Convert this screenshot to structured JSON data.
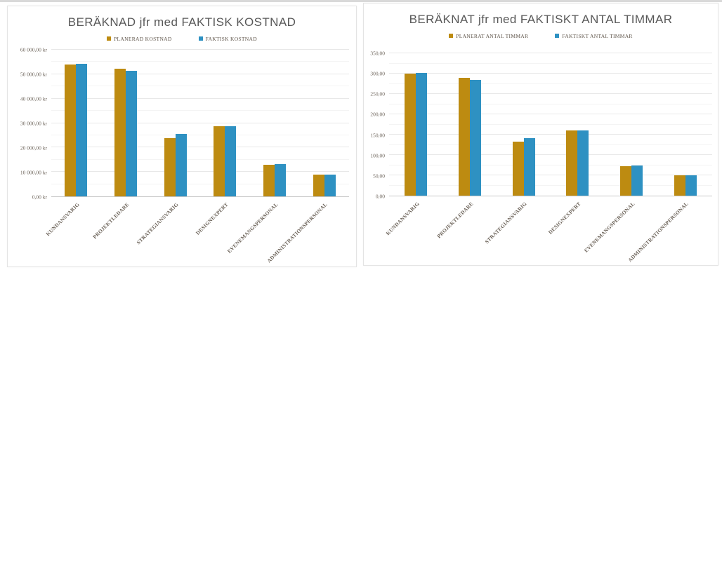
{
  "page": {
    "background": "#ffffff",
    "top_edge_color": "#d9d9d9"
  },
  "colors": {
    "planned_gold": "#BD8B11",
    "actual_blue": "#2E91C2",
    "title_gray": "#595959",
    "axis_text": "#6b6258"
  },
  "chart_data": [
    {
      "type": "bar",
      "title": "BERÄKNAD jfr med FAKTISK KOSTNAD",
      "legend_position": "top",
      "grid": true,
      "categories": [
        "KUNDANSVARIG",
        "PROJEKTLEDARE",
        "STRATEGIANSVARIG",
        "DESIGNEXPERT",
        "EVENEMANGSPERSONAL",
        "ADMINISTRATIONSPERSONAL"
      ],
      "series": [
        {
          "name": "PLANERAD KOSTNAD",
          "color": "#BD8B11",
          "values": [
            54000,
            52200,
            23760,
            28800,
            12960,
            9000
          ]
        },
        {
          "name": "FAKTISK KOSTNAD",
          "color": "#2E91C2",
          "values": [
            54360,
            51300,
            25560,
            28800,
            13320,
            9000
          ]
        }
      ],
      "xlabel": "",
      "ylabel": "",
      "unit": "kr",
      "ylim": [
        0,
        60000
      ],
      "y_major": 10000,
      "y_minor": 5000,
      "y_tick_labels": [
        "60 000,00 kr",
        "50 000,00 kr",
        "40 000,00 kr",
        "30 000,00 kr",
        "20 000,00 kr",
        "10 000,00 kr",
        "0,00 kr"
      ]
    },
    {
      "type": "bar",
      "title": "BERÄKNAT jfr med FAKTISKT ANTAL TIMMAR",
      "legend_position": "top",
      "grid": true,
      "categories": [
        "KUNDANSVARIG",
        "PROJEKTLEDARE",
        "STRATEGIANSVARIG",
        "DESIGNEXPERT",
        "EVENEMANGSPERSONAL",
        "ADMINISTRATIONSPERSONAL"
      ],
      "series": [
        {
          "name": "PLANERAT ANTAL TIMMAR",
          "color": "#BD8B11",
          "values": [
            300,
            290,
            132,
            160,
            72,
            50
          ]
        },
        {
          "name": "FAKTISKT ANTAL TIMMAR",
          "color": "#2E91C2",
          "values": [
            302,
            285,
            142,
            160,
            74,
            50
          ]
        }
      ],
      "xlabel": "",
      "ylabel": "",
      "unit": "timmar",
      "ylim": [
        0,
        350
      ],
      "y_major": 50,
      "y_minor": 25,
      "y_tick_labels": [
        "350,00",
        "300,00",
        "250,00",
        "200,00",
        "150,00",
        "100,00",
        "50,00",
        "0,00"
      ]
    }
  ]
}
